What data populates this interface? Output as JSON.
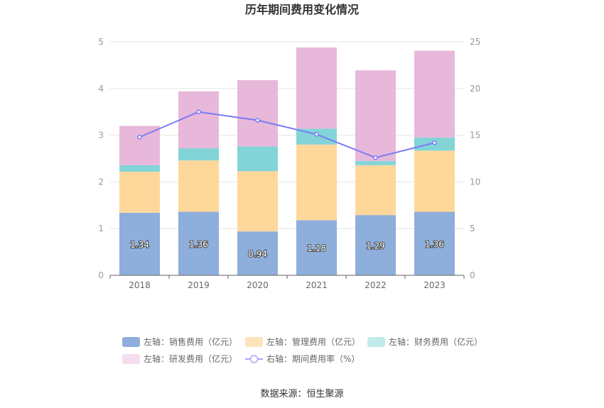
{
  "chart_data": {
    "type": "bar",
    "title": "历年期间费用变化情况",
    "categories": [
      "2018",
      "2019",
      "2020",
      "2021",
      "2022",
      "2023"
    ],
    "series": [
      {
        "name": "左轴：销售费用（亿元）",
        "values": [
          1.34,
          1.36,
          0.94,
          1.18,
          1.29,
          1.36
        ],
        "color": "#8eaedb",
        "data_labels": [
          "1.34",
          "1.36",
          "0.94",
          "1.18",
          "1.29",
          "1.36"
        ]
      },
      {
        "name": "左轴：管理费用（亿元）",
        "values": [
          0.88,
          1.1,
          1.29,
          1.62,
          1.07,
          1.31
        ],
        "color": "#fed89b"
      },
      {
        "name": "左轴：财务费用（亿元）",
        "values": [
          0.14,
          0.26,
          0.53,
          0.34,
          0.09,
          0.28
        ],
        "color": "#82d4d7"
      },
      {
        "name": "左轴：研发费用（亿元）",
        "values": [
          0.84,
          1.22,
          1.42,
          1.74,
          1.94,
          1.86
        ],
        "color": "#e7b8da"
      }
    ],
    "line_series": {
      "name": "右轴：期间费用率（%）",
      "values": [
        14.8,
        17.5,
        16.6,
        15.1,
        12.6,
        14.2
      ],
      "color": "#7b7cf3"
    },
    "left_axis": {
      "ylim": [
        0,
        5
      ],
      "ticks": [
        "0",
        "1",
        "2",
        "3",
        "4",
        "5"
      ]
    },
    "right_axis": {
      "ylim": [
        0,
        25
      ],
      "ticks": [
        "0",
        "5",
        "10",
        "15",
        "20",
        "25"
      ]
    },
    "legend_position": "bottom-center"
  },
  "legend_items": [
    {
      "label": "左轴：销售费用（亿元）",
      "color": "#8eaedb",
      "kind": "box"
    },
    {
      "label": "左轴：管理费用（亿元）",
      "color": "#fde3bb",
      "kind": "box"
    },
    {
      "label": "左轴：财务费用（亿元）",
      "color": "#c3eaeb",
      "kind": "box"
    },
    {
      "label": "左轴：研发费用（亿元）",
      "color": "#f3ddee",
      "kind": "box"
    },
    {
      "label": "右轴：期间费用率（%）",
      "color": "#a7a8f6",
      "kind": "line"
    }
  ],
  "source_text": "数据来源：恒生聚源"
}
